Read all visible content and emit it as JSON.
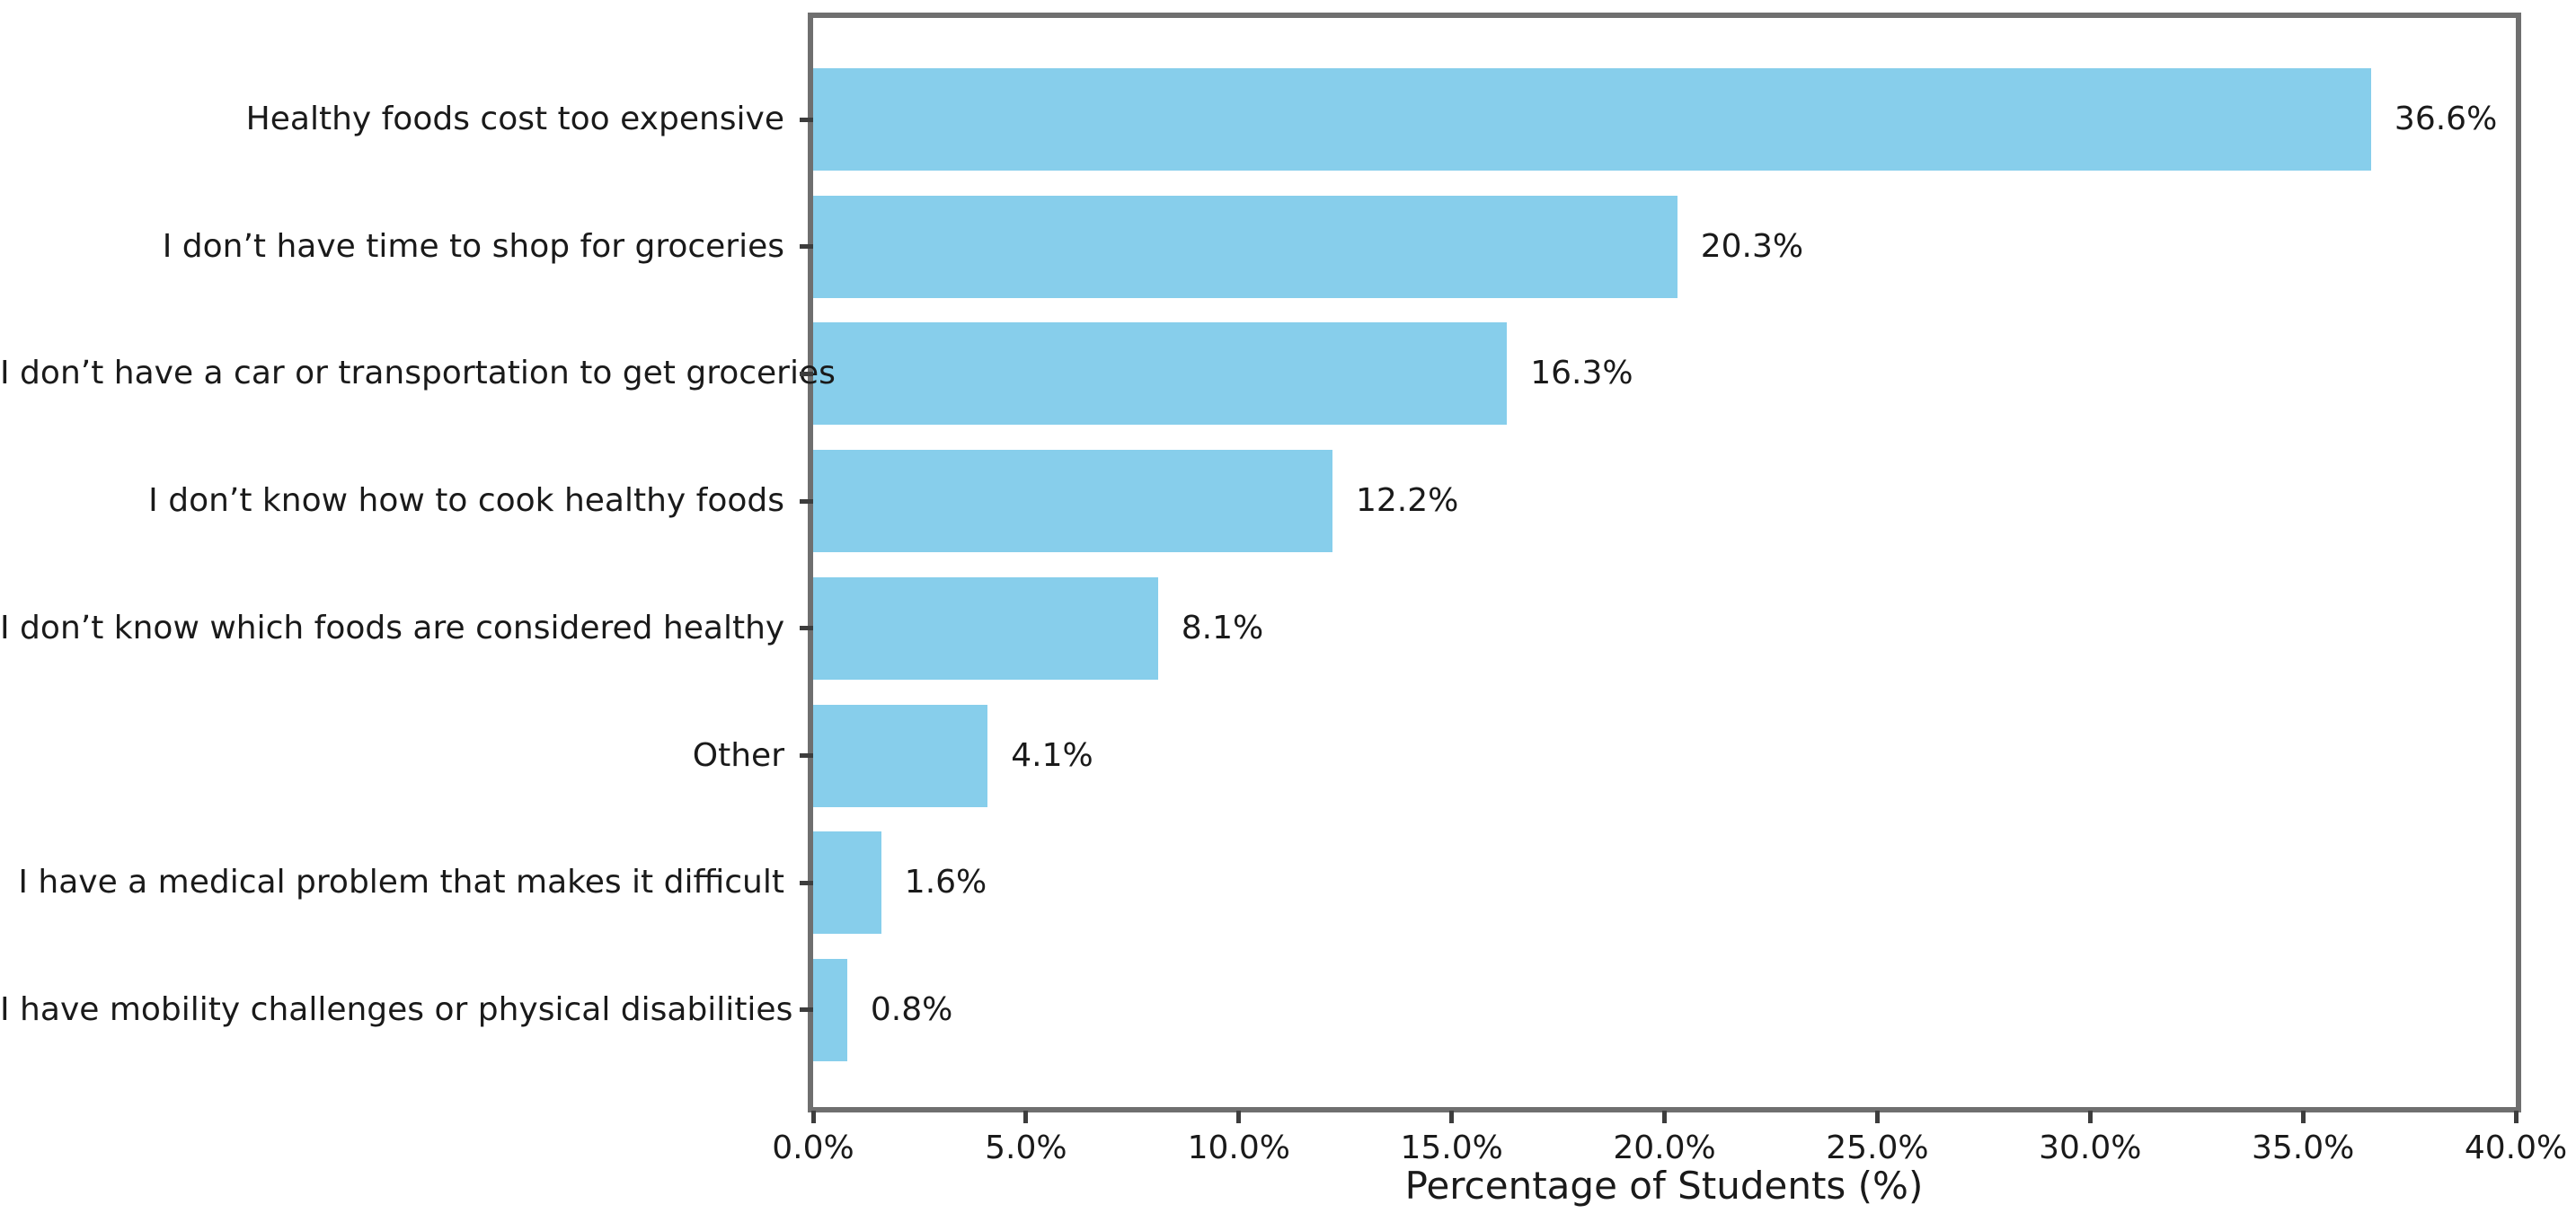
{
  "chart_data": {
    "type": "bar",
    "orientation": "horizontal",
    "title": "",
    "xlabel": "Percentage of Students (%)",
    "ylabel": "",
    "xlim": [
      0,
      40
    ],
    "grid": false,
    "legend": null,
    "categories": [
      "Healthy foods cost too expensive",
      "I don’t have time to shop for groceries",
      "I don’t have a car or transportation to get groceries",
      "I don’t know how to cook healthy foods",
      "I don’t know which foods are considered healthy",
      "Other",
      "I have a medical problem that makes it difficult",
      "I have mobility challenges or physical disabilities"
    ],
    "values": [
      36.6,
      20.3,
      16.3,
      12.2,
      8.1,
      4.1,
      1.6,
      0.8
    ],
    "value_labels": [
      "36.6%",
      "20.3%",
      "16.3%",
      "12.2%",
      "8.1%",
      "4.1%",
      "1.6%",
      "0.8%"
    ],
    "x_tick_values": [
      0,
      5,
      10,
      15,
      20,
      25,
      30,
      35,
      40
    ],
    "x_tick_labels": [
      "0.0%",
      "5.0%",
      "10.0%",
      "15.0%",
      "20.0%",
      "25.0%",
      "30.0%",
      "35.0%",
      "40.0%"
    ]
  },
  "colors": {
    "bar_fill": "#87CEEB",
    "spine": "#6f6f6f",
    "tick": "#3d3d3d",
    "text": "#1a1a1a",
    "background": "#ffffff"
  }
}
